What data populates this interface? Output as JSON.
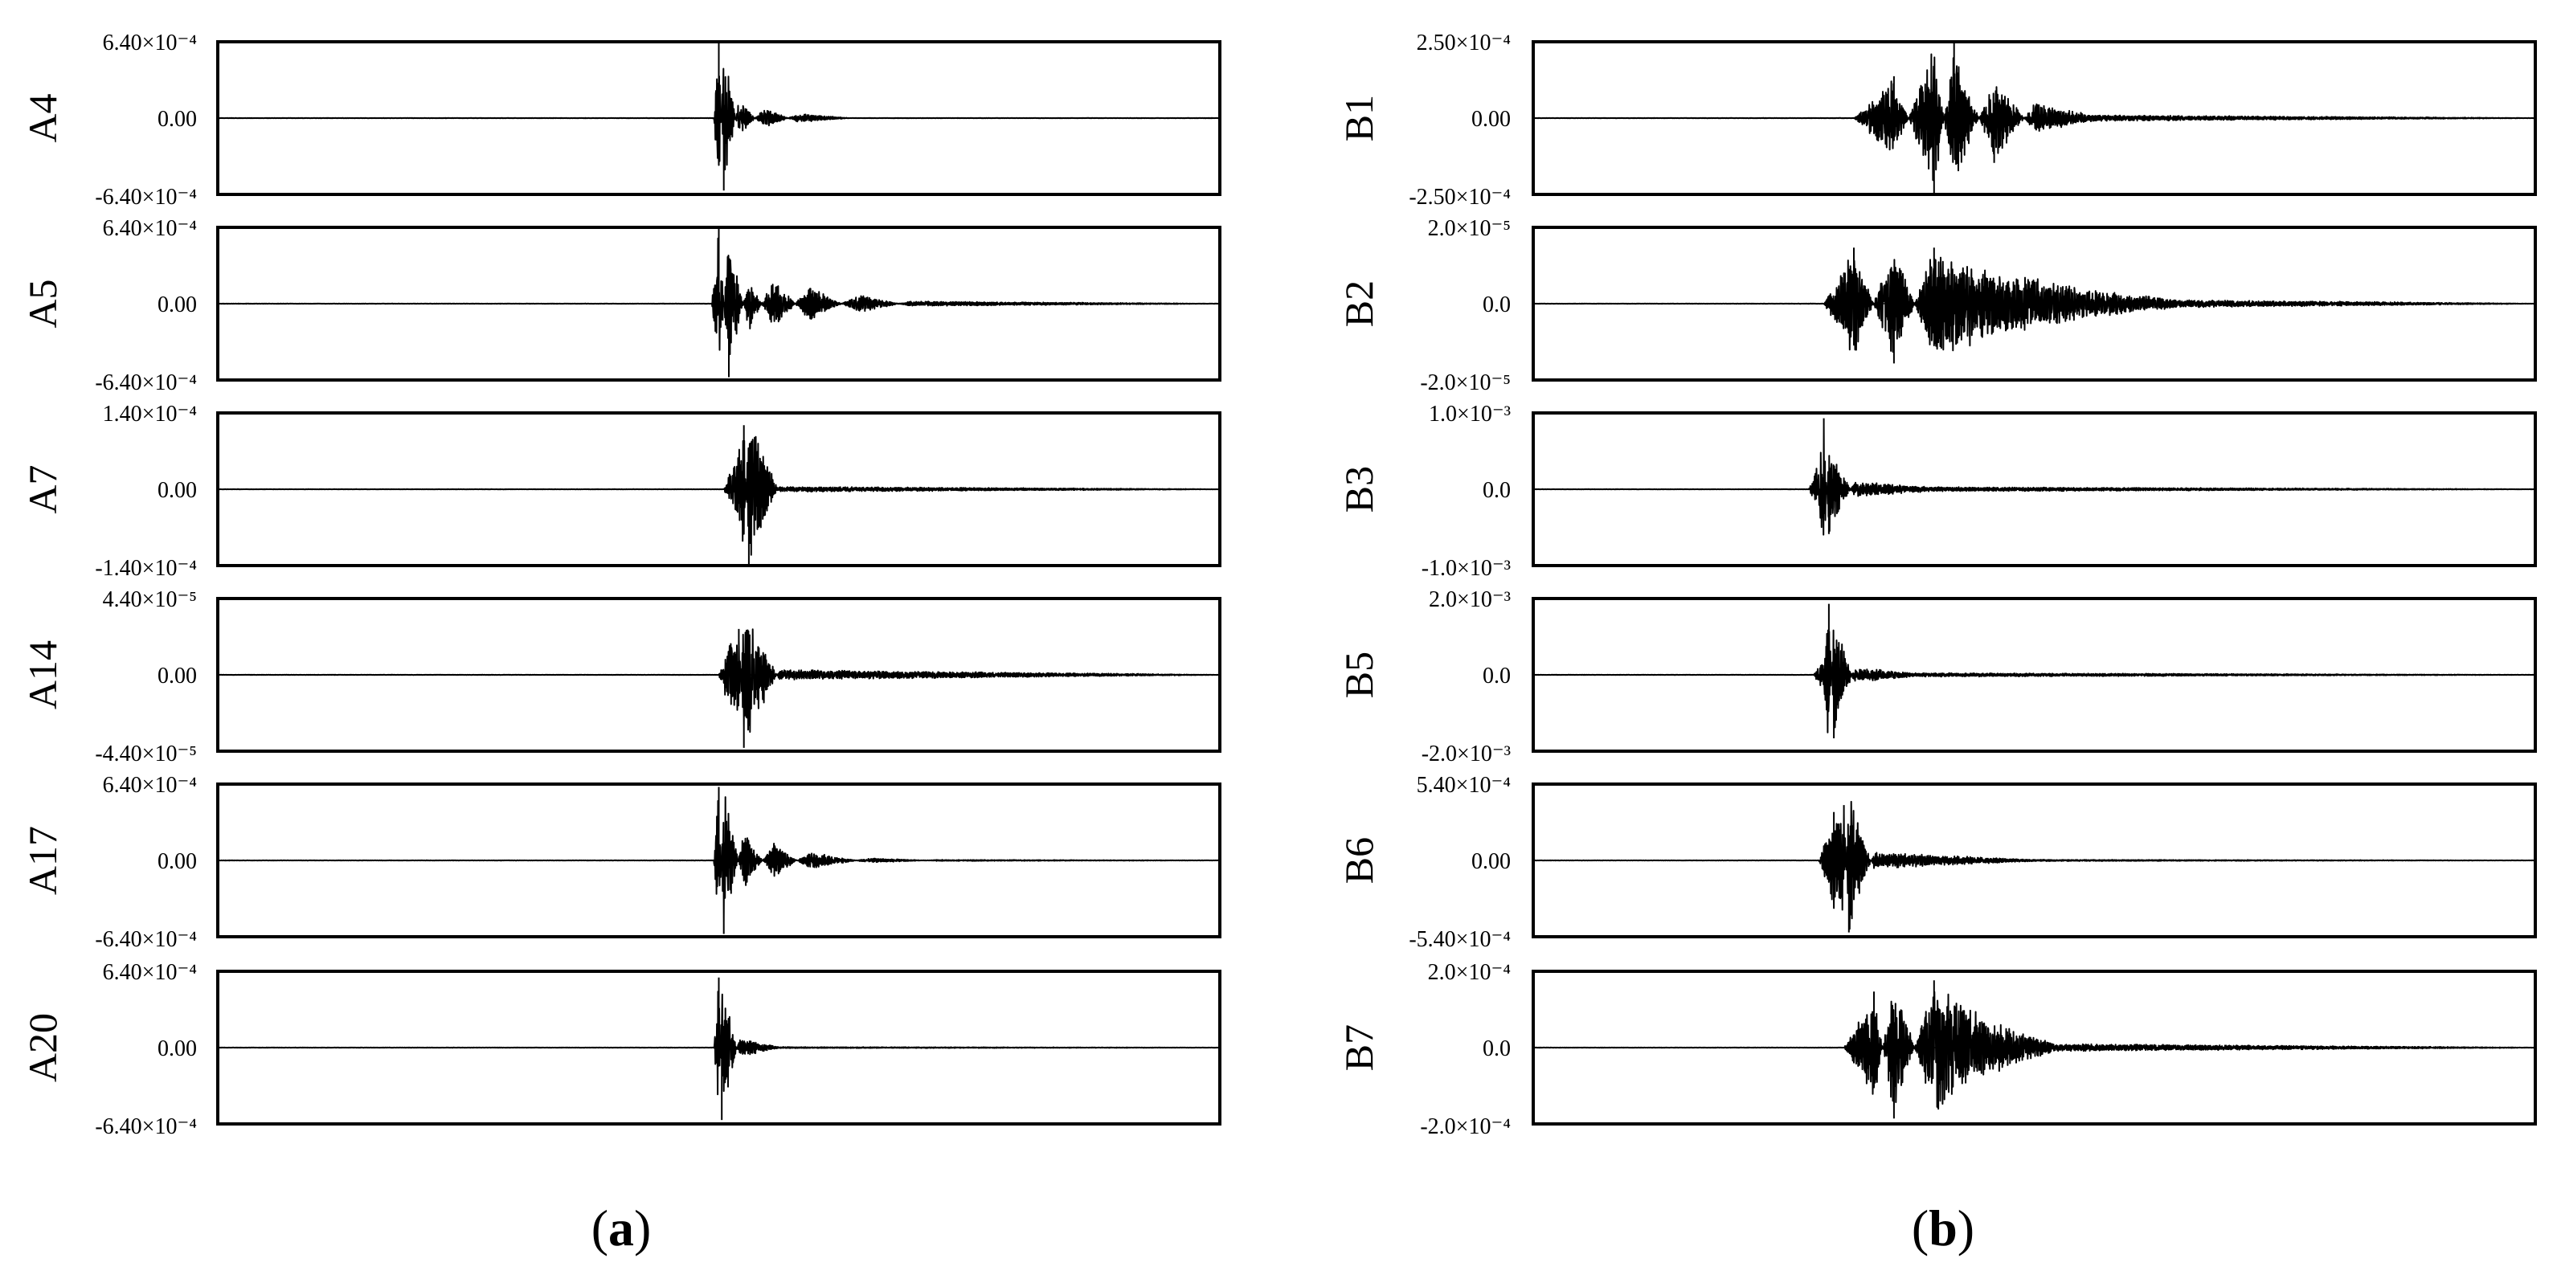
{
  "panels": [
    {
      "label_open": "(",
      "label_letter": "a",
      "label_close": ")"
    },
    {
      "label_open": "(",
      "label_letter": "b",
      "label_close": ")"
    }
  ],
  "chart_data": [
    {
      "type": "line",
      "panel": "a",
      "name": "A4",
      "ylim": [
        -0.00064,
        0.00064
      ],
      "yticks": {
        "top": "6.40×10⁻⁴",
        "mid": "0.00",
        "bottom": "-6.40×10⁻⁴"
      },
      "x": [
        0.0,
        0.495,
        0.5,
        0.505,
        0.52,
        0.545,
        0.58,
        0.63,
        1.0
      ],
      "y": [
        0.0,
        0.0,
        0.00064,
        -0.00062,
        0.00016,
        -9e-05,
        4e-05,
        0.0,
        0.0
      ]
    },
    {
      "type": "line",
      "panel": "a",
      "name": "A5",
      "ylim": [
        -0.00064,
        0.00064
      ],
      "yticks": {
        "top": "6.40×10⁻⁴",
        "mid": "0.00",
        "bottom": "-6.40×10⁻⁴"
      },
      "x": [
        0.0,
        0.493,
        0.5,
        0.51,
        0.53,
        0.555,
        0.59,
        0.64,
        0.69,
        1.0
      ],
      "y": [
        0.0,
        0.0,
        0.00064,
        -0.00063,
        0.00024,
        -0.00023,
        0.00015,
        -8e-05,
        2e-05,
        0.0
      ]
    },
    {
      "type": "line",
      "panel": "a",
      "name": "A7",
      "ylim": [
        -0.00014,
        0.00014
      ],
      "yticks": {
        "top": "1.40×10⁻⁴",
        "mid": "0.00",
        "bottom": "-1.40×10⁻⁴"
      },
      "x": [
        0.0,
        0.505,
        0.515,
        0.525,
        0.53,
        0.56,
        1.0
      ],
      "y": [
        0.0,
        0.0,
        5e-05,
        0.00012,
        -0.00014,
        5e-06,
        0.0
      ]
    },
    {
      "type": "line",
      "panel": "a",
      "name": "A14",
      "ylim": [
        -4.4e-05,
        4.4e-05
      ],
      "yticks": {
        "top": "4.40×10⁻⁵",
        "mid": "0.00",
        "bottom": "-4.40×10⁻⁵"
      },
      "x": [
        0.0,
        0.5,
        0.51,
        0.52,
        0.525,
        0.56,
        1.0
      ],
      "y": [
        0.0,
        0.0,
        2e-05,
        2.7e-05,
        -4.3e-05,
        3e-06,
        0.0
      ]
    },
    {
      "type": "line",
      "panel": "a",
      "name": "A17",
      "ylim": [
        -0.00064,
        0.00064
      ],
      "yticks": {
        "top": "6.40×10⁻⁴",
        "mid": "0.00",
        "bottom": "-6.40×10⁻⁴"
      },
      "x": [
        0.0,
        0.495,
        0.5,
        0.505,
        0.525,
        0.555,
        0.59,
        0.65,
        0.72,
        1.0
      ],
      "y": [
        0.0,
        0.0,
        0.00063,
        -0.00063,
        0.00025,
        -0.00015,
        7.5e-05,
        -2e-05,
        5e-06,
        0.0
      ]
    },
    {
      "type": "line",
      "panel": "a",
      "name": "A20",
      "ylim": [
        -0.00064,
        0.00064
      ],
      "yticks": {
        "top": "6.40×10⁻⁴",
        "mid": "0.00",
        "bottom": "-6.40×10⁻⁴"
      },
      "x": [
        0.0,
        0.495,
        0.5,
        0.503,
        0.52,
        0.56,
        1.0
      ],
      "y": [
        0.0,
        0.0,
        0.0006,
        -0.00062,
        8e-05,
        5e-06,
        0.0
      ]
    },
    {
      "type": "line",
      "panel": "b",
      "name": "B1",
      "ylim": [
        -0.00025,
        0.00025
      ],
      "yticks": {
        "top": "2.50×10⁻⁴",
        "mid": "0.00",
        "bottom": "-2.50×10⁻⁴"
      },
      "x": [
        0.0,
        0.32,
        0.36,
        0.4,
        0.42,
        0.46,
        0.5,
        0.56,
        1.0
      ],
      "y": [
        0.0,
        0.0,
        0.00014,
        -0.00025,
        0.00025,
        -0.00015,
        5e-05,
        1e-05,
        0.0
      ]
    },
    {
      "type": "line",
      "panel": "b",
      "name": "B2",
      "ylim": [
        -2e-05,
        2e-05
      ],
      "yticks": {
        "top": "2.0×10⁻⁵",
        "mid": "0.0",
        "bottom": "-2.0×10⁻⁵"
      },
      "x": [
        0.0,
        0.29,
        0.32,
        0.36,
        0.4,
        0.46,
        0.55,
        0.65,
        1.0
      ],
      "y": [
        0.0,
        0.0,
        1.5e-05,
        -1.6e-05,
        1.5e-05,
        9e-06,
        4e-06,
        1e-06,
        0.0
      ]
    },
    {
      "type": "line",
      "panel": "b",
      "name": "B3",
      "ylim": [
        -0.001,
        0.001
      ],
      "yticks": {
        "top": "1.0×10⁻³",
        "mid": "0.0",
        "bottom": "-1.0×10⁻³"
      },
      "x": [
        0.0,
        0.275,
        0.285,
        0.29,
        0.295,
        0.32,
        0.4,
        1.0
      ],
      "y": [
        0.0,
        0.0,
        0.0004,
        0.00095,
        -0.0006,
        0.0001,
        3e-05,
        0.0
      ]
    },
    {
      "type": "line",
      "panel": "b",
      "name": "B5",
      "ylim": [
        -0.002,
        0.002
      ],
      "yticks": {
        "top": "2.0×10⁻³",
        "mid": "0.0",
        "bottom": "-2.0×10⁻³"
      },
      "x": [
        0.0,
        0.28,
        0.29,
        0.295,
        0.3,
        0.32,
        0.38,
        1.0
      ],
      "y": [
        0.0,
        0.0,
        0.0005,
        0.0019,
        -0.0017,
        0.0002,
        5e-05,
        0.0
      ]
    },
    {
      "type": "line",
      "panel": "b",
      "name": "B6",
      "ylim": [
        -0.00054,
        0.00054
      ],
      "yticks": {
        "top": "5.40×10⁻⁴",
        "mid": "0.00",
        "bottom": "-5.40×10⁻⁴"
      },
      "x": [
        0.0,
        0.285,
        0.3,
        0.31,
        0.315,
        0.34,
        0.5,
        1.0
      ],
      "y": [
        0.0,
        0.0,
        0.00035,
        0.0004,
        -0.00052,
        6e-05,
        5e-06,
        0.0
      ]
    },
    {
      "type": "line",
      "panel": "b",
      "name": "B7",
      "ylim": [
        -0.0002,
        0.0002
      ],
      "yticks": {
        "top": "2.0×10⁻⁴",
        "mid": "0.0",
        "bottom": "-2.0×10⁻⁴"
      },
      "x": [
        0.0,
        0.31,
        0.34,
        0.36,
        0.4,
        0.45,
        0.52,
        1.0
      ],
      "y": [
        0.0,
        0.0,
        0.00015,
        -0.00019,
        0.00018,
        8e-05,
        1e-05,
        0.0
      ]
    }
  ]
}
